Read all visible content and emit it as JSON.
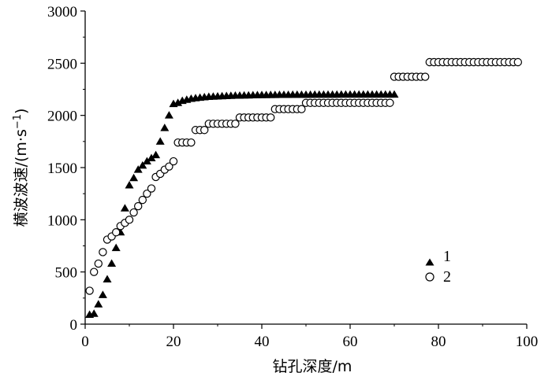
{
  "chart_data": {
    "type": "scatter",
    "xlabel": "钻孔深度/m",
    "ylabel": "横波波速/(m·s",
    "ylabel_superscript": "−1",
    "ylabel_close": ")",
    "xlim": [
      0,
      100
    ],
    "ylim": [
      0,
      3000
    ],
    "x_ticks": [
      "0",
      "20",
      "40",
      "60",
      "80",
      "100"
    ],
    "y_ticks": [
      "0",
      "500",
      "1000",
      "1500",
      "2000",
      "2500",
      "3000"
    ],
    "legend_position": "right",
    "grid": false,
    "series": [
      {
        "name": "1",
        "marker": "filled-triangle",
        "color": "#000000",
        "points": [
          [
            1,
            90
          ],
          [
            2,
            100
          ],
          [
            3,
            190
          ],
          [
            4,
            280
          ],
          [
            5,
            430
          ],
          [
            6,
            580
          ],
          [
            7,
            730
          ],
          [
            8,
            880
          ],
          [
            9,
            1110
          ],
          [
            10,
            1330
          ],
          [
            11,
            1400
          ],
          [
            12,
            1480
          ],
          [
            13,
            1520
          ],
          [
            14,
            1560
          ],
          [
            15,
            1590
          ],
          [
            16,
            1620
          ],
          [
            17,
            1750
          ],
          [
            18,
            1880
          ],
          [
            19,
            2000
          ],
          [
            20,
            2110
          ],
          [
            21,
            2120
          ],
          [
            22,
            2140
          ],
          [
            23,
            2150
          ],
          [
            24,
            2160
          ],
          [
            25,
            2165
          ],
          [
            26,
            2170
          ],
          [
            27,
            2175
          ],
          [
            28,
            2178
          ],
          [
            29,
            2180
          ],
          [
            30,
            2182
          ],
          [
            31,
            2184
          ],
          [
            32,
            2186
          ],
          [
            33,
            2188
          ],
          [
            34,
            2190
          ],
          [
            35,
            2190
          ],
          [
            36,
            2192
          ],
          [
            37,
            2192
          ],
          [
            38,
            2193
          ],
          [
            39,
            2194
          ],
          [
            40,
            2195
          ],
          [
            41,
            2195
          ],
          [
            42,
            2196
          ],
          [
            43,
            2196
          ],
          [
            44,
            2197
          ],
          [
            45,
            2197
          ],
          [
            46,
            2197
          ],
          [
            47,
            2198
          ],
          [
            48,
            2198
          ],
          [
            49,
            2198
          ],
          [
            50,
            2198
          ],
          [
            51,
            2198
          ],
          [
            52,
            2199
          ],
          [
            53,
            2199
          ],
          [
            54,
            2199
          ],
          [
            55,
            2199
          ],
          [
            56,
            2199
          ],
          [
            57,
            2199
          ],
          [
            58,
            2200
          ],
          [
            59,
            2200
          ],
          [
            60,
            2200
          ],
          [
            61,
            2200
          ],
          [
            62,
            2200
          ],
          [
            63,
            2200
          ],
          [
            64,
            2200
          ],
          [
            65,
            2200
          ],
          [
            66,
            2200
          ],
          [
            67,
            2200
          ],
          [
            68,
            2200
          ],
          [
            69,
            2200
          ],
          [
            70,
            2200
          ]
        ]
      },
      {
        "name": "2",
        "marker": "open-circle",
        "color": "#000000",
        "points": [
          [
            1,
            320
          ],
          [
            2,
            500
          ],
          [
            3,
            580
          ],
          [
            4,
            690
          ],
          [
            5,
            810
          ],
          [
            6,
            840
          ],
          [
            7,
            880
          ],
          [
            8,
            940
          ],
          [
            9,
            970
          ],
          [
            10,
            1000
          ],
          [
            11,
            1070
          ],
          [
            12,
            1130
          ],
          [
            13,
            1190
          ],
          [
            14,
            1250
          ],
          [
            15,
            1300
          ],
          [
            16,
            1410
          ],
          [
            17,
            1440
          ],
          [
            18,
            1480
          ],
          [
            19,
            1510
          ],
          [
            20,
            1560
          ],
          [
            21,
            1740
          ],
          [
            22,
            1740
          ],
          [
            23,
            1740
          ],
          [
            24,
            1740
          ],
          [
            25,
            1860
          ],
          [
            26,
            1860
          ],
          [
            27,
            1860
          ],
          [
            28,
            1920
          ],
          [
            29,
            1920
          ],
          [
            30,
            1920
          ],
          [
            31,
            1920
          ],
          [
            32,
            1920
          ],
          [
            33,
            1920
          ],
          [
            34,
            1920
          ],
          [
            35,
            1980
          ],
          [
            36,
            1980
          ],
          [
            37,
            1980
          ],
          [
            38,
            1980
          ],
          [
            39,
            1980
          ],
          [
            40,
            1980
          ],
          [
            41,
            1980
          ],
          [
            42,
            1980
          ],
          [
            43,
            2060
          ],
          [
            44,
            2060
          ],
          [
            45,
            2060
          ],
          [
            46,
            2060
          ],
          [
            47,
            2060
          ],
          [
            48,
            2060
          ],
          [
            49,
            2060
          ],
          [
            50,
            2120
          ],
          [
            51,
            2120
          ],
          [
            52,
            2120
          ],
          [
            53,
            2120
          ],
          [
            54,
            2120
          ],
          [
            55,
            2120
          ],
          [
            56,
            2120
          ],
          [
            57,
            2120
          ],
          [
            58,
            2120
          ],
          [
            59,
            2120
          ],
          [
            60,
            2120
          ],
          [
            61,
            2120
          ],
          [
            62,
            2120
          ],
          [
            63,
            2120
          ],
          [
            64,
            2120
          ],
          [
            65,
            2120
          ],
          [
            66,
            2120
          ],
          [
            67,
            2120
          ],
          [
            68,
            2120
          ],
          [
            69,
            2120
          ],
          [
            70,
            2370
          ],
          [
            71,
            2370
          ],
          [
            72,
            2370
          ],
          [
            73,
            2370
          ],
          [
            74,
            2370
          ],
          [
            75,
            2370
          ],
          [
            76,
            2370
          ],
          [
            77,
            2370
          ],
          [
            78,
            2510
          ],
          [
            79,
            2510
          ],
          [
            80,
            2510
          ],
          [
            81,
            2510
          ],
          [
            82,
            2510
          ],
          [
            83,
            2510
          ],
          [
            84,
            2510
          ],
          [
            85,
            2510
          ],
          [
            86,
            2510
          ],
          [
            87,
            2510
          ],
          [
            88,
            2510
          ],
          [
            89,
            2510
          ],
          [
            90,
            2510
          ],
          [
            91,
            2510
          ],
          [
            92,
            2510
          ],
          [
            93,
            2510
          ],
          [
            94,
            2510
          ],
          [
            95,
            2510
          ],
          [
            96,
            2510
          ],
          [
            97,
            2510
          ],
          [
            98,
            2510
          ]
        ]
      }
    ]
  }
}
